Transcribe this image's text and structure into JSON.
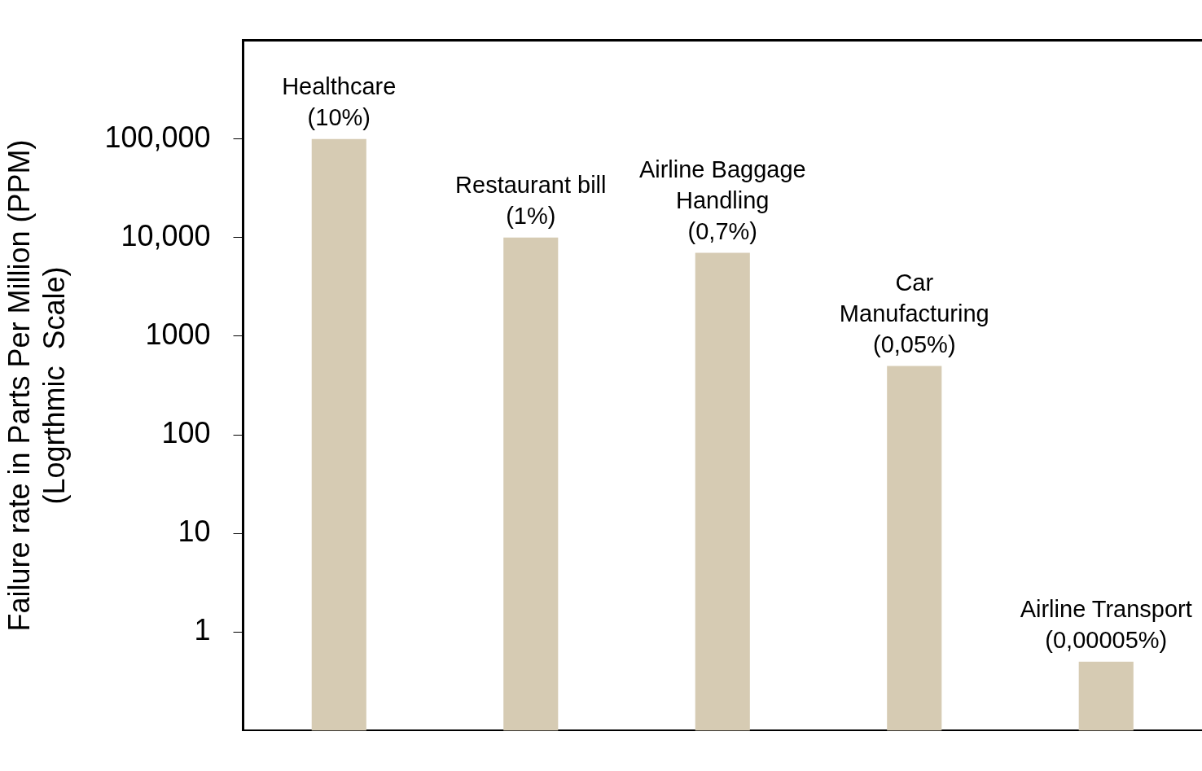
{
  "chart_data": {
    "type": "bar",
    "ylabel": "Failure rate in Parts Per Million (PPM)\n(Logrthmic  Scale)",
    "categories": [
      "Healthcare\n(10%)",
      "Restaurant bill\n(1%)",
      "Airline Baggage\nHandling\n(0,7%)",
      "Car\nManufacturing\n(0,05%)",
      "Airline Transport\n(0,00005%)"
    ],
    "values": [
      100000,
      10000,
      7000,
      500,
      0.5
    ],
    "color": "#d6cbb3",
    "log": true,
    "ylim": [
      0.1,
      1000000
    ],
    "yticks": [
      1,
      10,
      100,
      1000,
      {
        "value": 10000,
        "label": "10,000"
      },
      {
        "value": 100000,
        "label": "100,000"
      }
    ],
    "tick_labels": "y",
    "grid": false,
    "legend": false
  }
}
